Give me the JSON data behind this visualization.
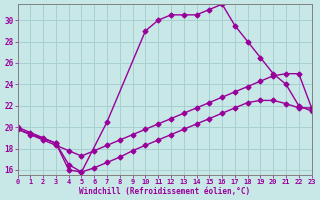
{
  "xlabel": "Windchill (Refroidissement éolien,°C)",
  "bg_color": "#c8e8e8",
  "grid_color": "#a8d0d0",
  "line_color": "#990099",
  "xlim": [
    0,
    23
  ],
  "ylim": [
    15.5,
    31.5
  ],
  "yticks": [
    16,
    18,
    20,
    22,
    24,
    26,
    28,
    30
  ],
  "xticks": [
    0,
    1,
    2,
    3,
    4,
    5,
    6,
    7,
    8,
    9,
    10,
    11,
    12,
    13,
    14,
    15,
    16,
    17,
    18,
    19,
    20,
    21,
    22,
    23
  ],
  "line1_x": [
    0,
    1,
    2,
    3,
    4,
    5,
    6,
    7,
    8,
    9,
    10,
    11,
    12,
    13,
    14,
    15,
    16,
    17,
    18,
    19,
    20,
    21,
    22,
    23
  ],
  "line1_y": [
    20.0,
    19.5,
    19.0,
    18.5,
    16.5,
    15.8,
    16.2,
    16.7,
    17.2,
    17.8,
    18.3,
    18.8,
    19.3,
    19.8,
    20.3,
    20.8,
    21.3,
    21.8,
    22.3,
    22.5,
    22.5,
    22.2,
    21.8,
    21.8
  ],
  "line2_x": [
    0,
    1,
    2,
    3,
    4,
    5,
    6,
    7,
    8,
    9,
    10,
    11,
    12,
    13,
    14,
    15,
    16,
    17,
    18,
    19,
    20,
    21,
    22,
    23
  ],
  "line2_y": [
    19.8,
    19.3,
    18.8,
    18.3,
    17.8,
    17.3,
    17.8,
    18.3,
    18.8,
    19.3,
    19.8,
    20.3,
    20.8,
    21.3,
    21.8,
    22.3,
    22.8,
    23.3,
    23.8,
    24.3,
    24.8,
    25.0,
    25.0,
    21.8
  ],
  "line3_x": [
    0,
    3,
    4,
    5,
    7,
    10,
    11,
    12,
    13,
    14,
    15,
    16,
    17,
    18,
    19,
    20,
    21,
    22,
    23
  ],
  "line3_y": [
    19.8,
    18.5,
    16.0,
    15.8,
    20.5,
    29.0,
    30.0,
    30.5,
    30.5,
    30.5,
    31.0,
    31.5,
    29.5,
    28.0,
    26.5,
    25.0,
    24.0,
    22.0,
    21.5
  ]
}
